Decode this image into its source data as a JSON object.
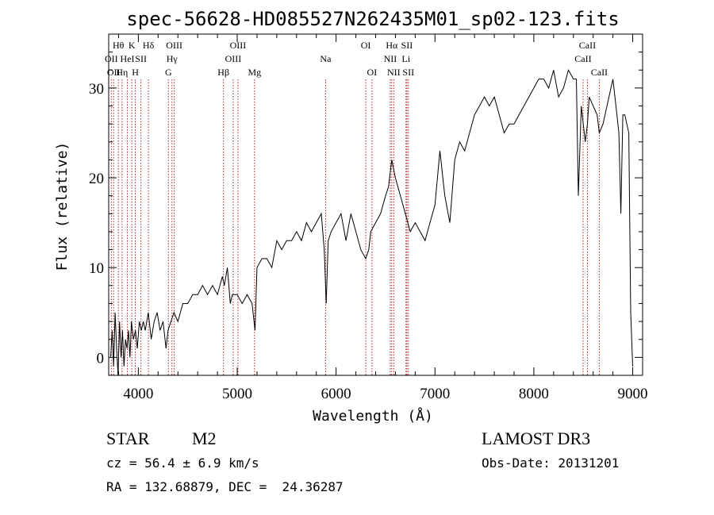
{
  "chart_data": {
    "type": "line",
    "title": "spec-56628-HD085527N262435M01_sp02-123.fits",
    "xlabel": "Wavelength (Å)",
    "ylabel": "Flux (relative)",
    "xlim": [
      3700,
      9100
    ],
    "ylim": [
      -2,
      36
    ],
    "x_ticks": [
      4000,
      5000,
      6000,
      7000,
      8000,
      9000
    ],
    "y_ticks": [
      0,
      10,
      20,
      30
    ],
    "x_tick_labels": [
      "4000",
      "5000",
      "6000",
      "7000",
      "8000",
      "9000"
    ],
    "y_tick_labels": [
      "0",
      "10",
      "20",
      "30"
    ],
    "grid": false,
    "line_color": "#000000",
    "marker_color": "#b22222",
    "series": [
      {
        "x": [
          3720,
          3735,
          3750,
          3765,
          3780,
          3795,
          3810,
          3825,
          3840,
          3855,
          3870,
          3885,
          3900,
          3915,
          3930,
          3950,
          3970,
          3990,
          4010,
          4030,
          4050,
          4070,
          4100,
          4130,
          4160,
          4190,
          4220,
          4250,
          4280,
          4300,
          4330,
          4360,
          4400,
          4450,
          4500,
          4550,
          4600,
          4650,
          4700,
          4750,
          4800,
          4850,
          4870,
          4900,
          4930,
          4950,
          5000,
          5050,
          5100,
          5150,
          5180,
          5200,
          5250,
          5300,
          5350,
          5400,
          5450,
          5500,
          5550,
          5600,
          5650,
          5700,
          5750,
          5800,
          5850,
          5880,
          5900,
          5920,
          5950,
          6000,
          6050,
          6100,
          6150,
          6200,
          6250,
          6300,
          6330,
          6350,
          6400,
          6450,
          6500,
          6530,
          6563,
          6600,
          6650,
          6700,
          6750,
          6800,
          6850,
          6900,
          6950,
          7000,
          7050,
          7100,
          7150,
          7200,
          7250,
          7300,
          7350,
          7400,
          7450,
          7500,
          7550,
          7600,
          7650,
          7700,
          7750,
          7800,
          7850,
          7900,
          7950,
          8000,
          8050,
          8100,
          8150,
          8200,
          8250,
          8300,
          8350,
          8400,
          8430,
          8450,
          8480,
          8500,
          8520,
          8542,
          8560,
          8600,
          8640,
          8662,
          8700,
          8740,
          8780,
          8800,
          8830,
          8860,
          8880,
          8900,
          8920,
          8940,
          8960,
          8980,
          9000
        ],
        "y": [
          0,
          3,
          -1,
          5,
          1,
          -2,
          4,
          0,
          3,
          -1,
          2,
          1,
          3,
          0,
          4,
          2,
          3,
          1,
          4,
          3,
          4,
          3,
          5,
          2,
          4,
          5,
          3,
          4,
          1,
          3,
          4,
          5,
          4,
          6,
          6,
          7,
          7,
          8,
          7,
          8,
          7,
          9,
          8,
          10,
          6,
          7,
          7,
          6,
          7,
          6,
          3,
          10,
          11,
          11,
          10,
          13,
          12,
          13,
          13,
          14,
          13,
          15,
          14,
          15,
          16,
          12,
          6,
          13,
          14,
          15,
          16,
          13,
          16,
          14,
          12,
          11,
          12,
          14,
          15,
          16,
          18,
          19,
          22,
          20,
          18,
          16,
          14,
          15,
          14,
          13,
          15,
          17,
          23,
          18,
          15,
          22,
          24,
          23,
          25,
          27,
          28,
          29,
          28,
          29,
          27,
          25,
          26,
          26,
          27,
          28,
          29,
          30,
          31,
          31,
          30,
          32,
          29,
          30,
          32,
          31,
          31,
          18,
          28,
          26,
          24,
          26,
          29,
          28,
          27,
          25,
          26,
          28,
          30,
          31,
          28,
          25,
          16,
          27,
          27,
          26,
          25,
          5,
          -1
        ]
      }
    ],
    "line_markers": [
      {
        "wavelength": 3727,
        "label": "OII",
        "row": 2
      },
      {
        "wavelength": 3750,
        "label": "OII",
        "row": 3
      },
      {
        "wavelength": 3798,
        "label": "Hθ",
        "row": 1
      },
      {
        "wavelength": 3835,
        "label": "Hη",
        "row": 3
      },
      {
        "wavelength": 3889,
        "label": "HeI",
        "row": 2
      },
      {
        "wavelength": 3934,
        "label": "K",
        "row": 1
      },
      {
        "wavelength": 3969,
        "label": "H",
        "row": 3
      },
      {
        "wavelength": 4026,
        "label": "SII",
        "row": 2
      },
      {
        "wavelength": 4102,
        "label": "Hδ",
        "row": 1
      },
      {
        "wavelength": 4304,
        "label": "G",
        "row": 3
      },
      {
        "wavelength": 4340,
        "label": "Hγ",
        "row": 2
      },
      {
        "wavelength": 4363,
        "label": "OIII",
        "row": 1
      },
      {
        "wavelength": 4861,
        "label": "Hβ",
        "row": 3
      },
      {
        "wavelength": 4959,
        "label": "OIII",
        "row": 2
      },
      {
        "wavelength": 5007,
        "label": "OIII",
        "row": 1
      },
      {
        "wavelength": 5175,
        "label": "Mg",
        "row": 3
      },
      {
        "wavelength": 5894,
        "label": "Na",
        "row": 2
      },
      {
        "wavelength": 6300,
        "label": "OI",
        "row": 1
      },
      {
        "wavelength": 6363,
        "label": "OI",
        "row": 3
      },
      {
        "wavelength": 6548,
        "label": "NII",
        "row": 2
      },
      {
        "wavelength": 6563,
        "label": "Hα",
        "row": 1
      },
      {
        "wavelength": 6583,
        "label": "NII",
        "row": 3
      },
      {
        "wavelength": 6707,
        "label": "Li",
        "row": 2
      },
      {
        "wavelength": 6716,
        "label": "SII",
        "row": 1
      },
      {
        "wavelength": 6731,
        "label": "SII",
        "row": 3
      },
      {
        "wavelength": 8498,
        "label": "CaII",
        "row": 2
      },
      {
        "wavelength": 8542,
        "label": "CaII",
        "row": 1
      },
      {
        "wavelength": 8662,
        "label": "CaII",
        "row": 3
      }
    ]
  },
  "info": {
    "class_label": "STAR",
    "subclass": "M2",
    "survey": "LAMOST DR3",
    "cz": "cz = 56.4 ± 6.9 km/s",
    "obs_date": "Obs-Date: 20131201",
    "coords": "RA = 132.68879, DEC =  24.36287"
  }
}
